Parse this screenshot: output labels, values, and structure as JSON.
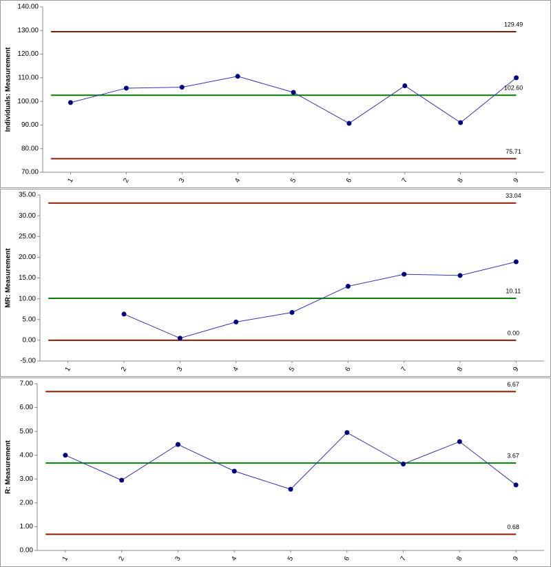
{
  "chart_data": [
    {
      "type": "line",
      "y_label": "Individuals: Measurement",
      "categories": [
        "1",
        "2",
        "3",
        "4",
        "5",
        "6",
        "7",
        "8",
        "9"
      ],
      "series": [
        {
          "color": "#000080",
          "values": [
            99.5,
            105.6,
            106.0,
            110.6,
            103.8,
            90.7,
            106.6,
            91.0,
            110.0
          ]
        }
      ],
      "control_lines": {
        "values": [
          129.49,
          102.6,
          75.71
        ],
        "value_labels": [
          "129.49",
          "102.60",
          "75.71"
        ],
        "colors": [
          "#8b1a00",
          "#008000",
          "#8b1a00"
        ]
      },
      "ylim": [
        70,
        140
      ],
      "yticks": [
        {
          "value": 70,
          "label": "70.00"
        },
        {
          "value": 80,
          "label": "80.00"
        },
        {
          "value": 90,
          "label": "90.00"
        },
        {
          "value": 100,
          "label": "100.00"
        },
        {
          "value": 110,
          "label": "110.00"
        },
        {
          "value": 120,
          "label": "120.00"
        },
        {
          "value": 130,
          "label": "130.00"
        },
        {
          "value": 140,
          "label": "140.00"
        }
      ]
    },
    {
      "type": "line",
      "y_label": "MR: Measurement",
      "categories": [
        "1",
        "2",
        "3",
        "4",
        "5",
        "6",
        "7",
        "8",
        "9"
      ],
      "series": [
        {
          "color": "#000080",
          "values": [
            null,
            6.3,
            0.5,
            4.4,
            6.7,
            13.0,
            15.9,
            15.6,
            18.9
          ]
        }
      ],
      "control_lines": {
        "values": [
          33.04,
          10.11,
          0
        ],
        "value_labels": [
          "33.04",
          "10.11",
          "0.00"
        ],
        "colors": [
          "#8b1a00",
          "#008000",
          "#8b1a00"
        ]
      },
      "ylim": [
        -5,
        35
      ],
      "yticks": [
        {
          "value": -5,
          "label": "-5.00"
        },
        {
          "value": 0,
          "label": "0.00"
        },
        {
          "value": 5,
          "label": "5.00"
        },
        {
          "value": 10,
          "label": "10.00"
        },
        {
          "value": 15,
          "label": "15.00"
        },
        {
          "value": 20,
          "label": "20.00"
        },
        {
          "value": 25,
          "label": "25.00"
        },
        {
          "value": 30,
          "label": "30.00"
        },
        {
          "value": 35,
          "label": "35.00"
        }
      ]
    },
    {
      "type": "line",
      "y_label": "R: Measurement",
      "categories": [
        "1",
        "2",
        "3",
        "4",
        "5",
        "6",
        "7",
        "8",
        "9"
      ],
      "series": [
        {
          "color": "#000080",
          "values": [
            4.0,
            2.95,
            4.45,
            3.33,
            2.57,
            4.95,
            3.63,
            4.57,
            2.75
          ]
        }
      ],
      "control_lines": {
        "values": [
          6.67,
          3.67,
          0.68
        ],
        "value_labels": [
          "6.67",
          "3.67",
          "0.68"
        ],
        "colors": [
          "#8b1a00",
          "#008000",
          "#8b1a00"
        ]
      },
      "ylim": [
        0,
        7
      ],
      "yticks": [
        {
          "value": 0,
          "label": "0.00"
        },
        {
          "value": 1,
          "label": "1.00"
        },
        {
          "value": 2,
          "label": "2.00"
        },
        {
          "value": 3,
          "label": "3.00"
        },
        {
          "value": 4,
          "label": "4.00"
        },
        {
          "value": 5,
          "label": "5.00"
        },
        {
          "value": 6,
          "label": "6.00"
        },
        {
          "value": 7,
          "label": "7.00"
        }
      ]
    }
  ]
}
